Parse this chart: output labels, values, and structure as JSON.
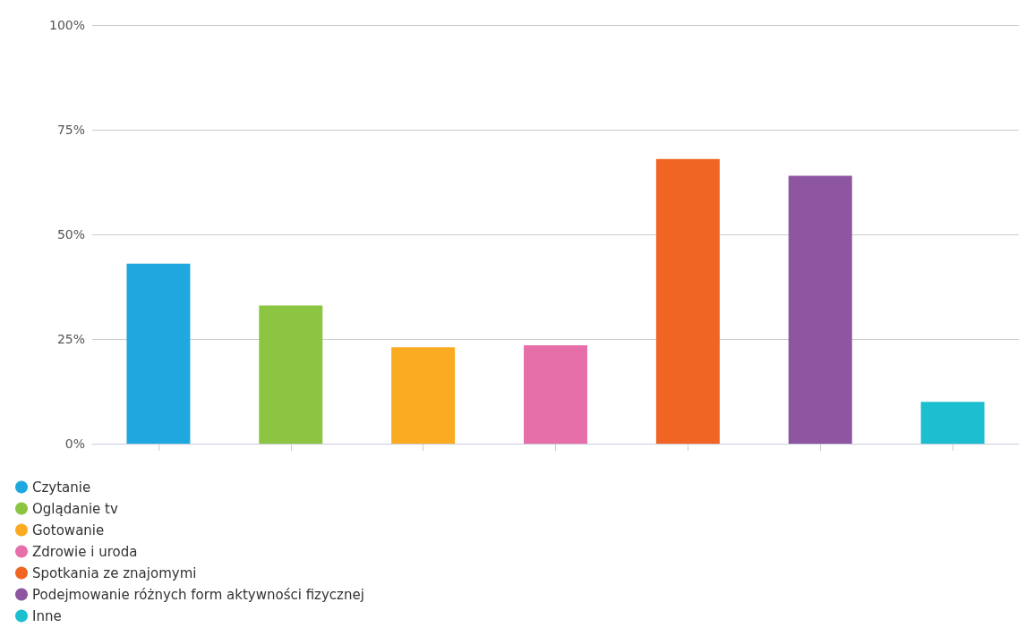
{
  "chart_data": {
    "type": "bar",
    "categories": [
      null,
      null,
      null,
      null,
      null,
      null,
      null
    ],
    "series": [
      {
        "name": "Czytanie",
        "color": "#1fa8e0",
        "values": [
          43,
          null,
          null,
          null,
          null,
          null,
          null
        ]
      },
      {
        "name": "Oglądanie tv",
        "color": "#8bc541",
        "values": [
          null,
          33,
          null,
          null,
          null,
          null,
          null
        ]
      },
      {
        "name": "Gotowanie",
        "color": "#fbab22",
        "values": [
          null,
          null,
          23,
          null,
          null,
          null,
          null
        ]
      },
      {
        "name": "Zdrowie i uroda",
        "color": "#e66faa",
        "values": [
          null,
          null,
          null,
          23.5,
          null,
          null,
          null
        ]
      },
      {
        "name": "Spotkania ze znajomymi",
        "color": "#f06424",
        "values": [
          null,
          null,
          null,
          null,
          68,
          null,
          null
        ]
      },
      {
        "name": "Podejmowanie różnych form aktywności fizycznej",
        "color": "#8e55a0",
        "values": [
          null,
          null,
          null,
          null,
          null,
          64,
          null
        ]
      },
      {
        "name": "Inne",
        "color": "#1bbfcf",
        "values": [
          null,
          null,
          null,
          null,
          null,
          null,
          10
        ]
      }
    ],
    "ylim": [
      0,
      100
    ],
    "yticks": [
      {
        "value": 0,
        "label": "0%"
      },
      {
        "value": 25,
        "label": "25%"
      },
      {
        "value": 50,
        "label": "50%"
      },
      {
        "value": 75,
        "label": "75%"
      },
      {
        "value": 100,
        "label": "100%"
      }
    ],
    "grid": "y",
    "legend": "bottom left"
  }
}
